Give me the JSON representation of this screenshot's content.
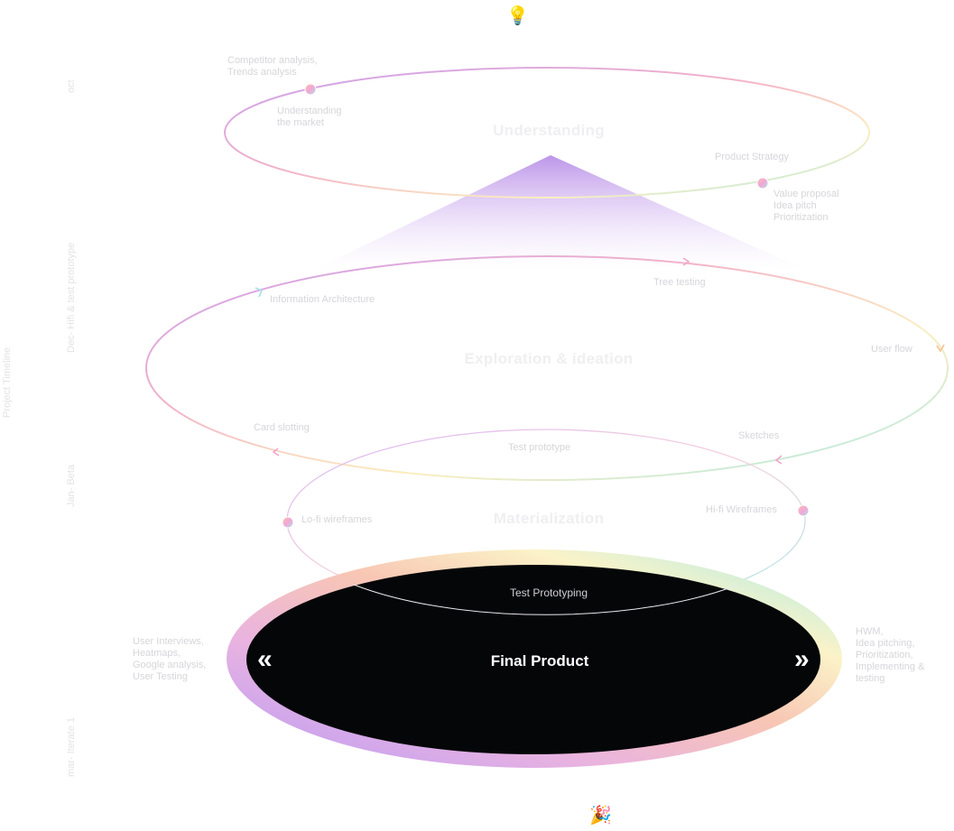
{
  "timeline": {
    "title": "Project Timeline",
    "oct": "oct",
    "dec": "Dec- Hifi & test prototype",
    "jan": "Jan- Beta",
    "mar": "mar- Iterate 1"
  },
  "stages": {
    "understanding": "Understanding",
    "exploration": "Exploration & ideation",
    "materialization": "Materialization",
    "final": "Final Product"
  },
  "notes": {
    "competitor": "Competitor analysis,\nTrends analysis",
    "market": "Understanding\nthe market",
    "product_strategy": "Product Strategy",
    "value": "Value proposal\nIdea pitch\nPrioritization",
    "info_arch": "Information Architecture",
    "tree_testing": "Tree testing",
    "user_flow": "User flow",
    "card_slotting": "Card slotting",
    "sketches": "Sketches",
    "test_prototype": "Test prototype",
    "lofi": "Lo-fi wireframes",
    "hifi": "Hi-fi Wireframes",
    "test_prototyping": "Test Prototyping",
    "left_final": "User Interviews,\nHeatmaps,\nGoogle analysis,\nUser Testing",
    "right_final": "HWM,\nIdea pitching,\nPrioritization,\nImplementing &\ntesting"
  },
  "icons": {
    "top": "💡",
    "bottom": "🎉",
    "prev": "«",
    "next": "»"
  },
  "colors": {
    "purple": "#c9a0f0",
    "pink": "#f3b3c9",
    "cyan": "#a8e8e8",
    "yellow": "#fbeec0",
    "final_fill": "#050608"
  }
}
